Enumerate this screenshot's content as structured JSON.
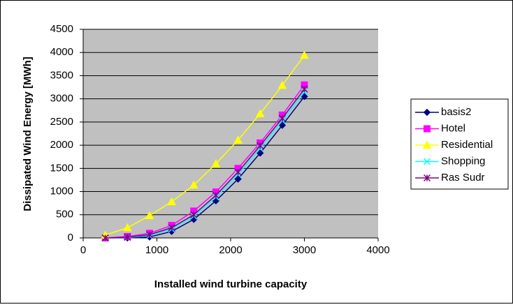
{
  "chart_data": {
    "type": "line",
    "x_label": "Installed wind turbine capacity",
    "y_label": "Dissipated Wind Energy [MWh]",
    "x": [
      300,
      600,
      900,
      1200,
      1500,
      1800,
      2100,
      2400,
      2700,
      3000
    ],
    "series": [
      {
        "name": "basis2",
        "color": "#000080",
        "marker": "diamond",
        "values": [
          0,
          0,
          20,
          140,
          400,
          800,
          1270,
          1830,
          2430,
          3050
        ]
      },
      {
        "name": "Hotel",
        "color": "#ff00ff",
        "marker": "square",
        "values": [
          0,
          30,
          100,
          270,
          580,
          990,
          1500,
          2050,
          2650,
          3300
        ]
      },
      {
        "name": "Residential",
        "color": "#ffff00",
        "marker": "triangle",
        "values": [
          60,
          220,
          480,
          780,
          1140,
          1600,
          2110,
          2680,
          3290,
          3940
        ]
      },
      {
        "name": "Shopping",
        "color": "#00ffff",
        "marker": "x",
        "values": [
          0,
          10,
          50,
          190,
          470,
          880,
          1370,
          1930,
          2530,
          3150
        ]
      },
      {
        "name": "Ras Sudr",
        "color": "#800080",
        "marker": "star",
        "values": [
          0,
          15,
          70,
          220,
          500,
          920,
          1420,
          1990,
          2580,
          3210
        ]
      }
    ],
    "xlim": [
      0,
      4000
    ],
    "xticks": [
      0,
      1000,
      2000,
      3000,
      4000
    ],
    "ylim": [
      0,
      4500
    ],
    "yticks": [
      0,
      500,
      1000,
      1500,
      2000,
      2500,
      3000,
      3500,
      4000,
      4500
    ],
    "grid": true,
    "legend_position": "right"
  }
}
